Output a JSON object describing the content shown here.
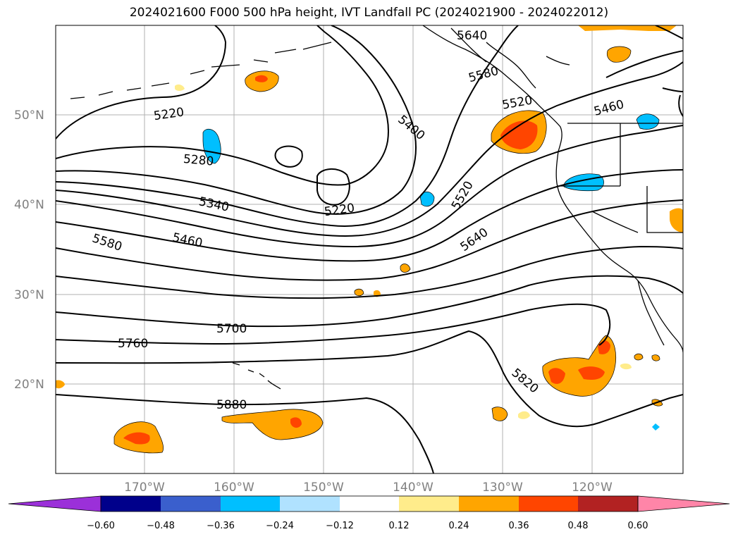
{
  "title": "2024021600 F000 500 hPa height, IVT Landfall PC (2024021900 - 2024022012)",
  "map": {
    "lat_labels": [
      "50°N",
      "40°N",
      "30°N",
      "20°N"
    ],
    "lon_labels": [
      "170°W",
      "160°W",
      "150°W",
      "140°W",
      "130°W",
      "120°W"
    ],
    "contour_labels": [
      "5640",
      "5580",
      "5520",
      "5460",
      "5220",
      "5400",
      "5280",
      "5520",
      "5220",
      "5340",
      "5640",
      "5460",
      "5580",
      "5700",
      "5760",
      "5820",
      "5880"
    ]
  },
  "colorbar": {
    "ticks": [
      "−0.60",
      "−0.48",
      "−0.36",
      "−0.24",
      "−0.12",
      "0.12",
      "0.24",
      "0.36",
      "0.48",
      "0.60"
    ],
    "colors": [
      "#9b30d9",
      "#00008b",
      "#3a5fcd",
      "#00bfff",
      "#b0e2ff",
      "#ffffff",
      "#ffec8b",
      "#ffa500",
      "#ff4500",
      "#b22222",
      "#ff85a8"
    ]
  }
}
